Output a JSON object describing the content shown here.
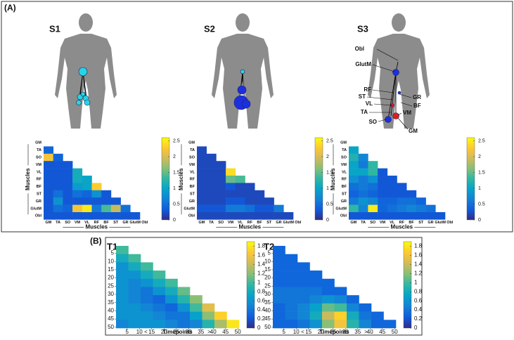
{
  "colormap": [
    "#352a87",
    "#0f5cdd",
    "#1481d6",
    "#06a4ca",
    "#2eb7a4",
    "#87bf77",
    "#d1bb59",
    "#fec832",
    "#f9fb0e"
  ],
  "panel_a": {
    "label": "(A)",
    "axis_label": "Muscles",
    "muscles": [
      "GM",
      "TA",
      "SO",
      "VM",
      "VL",
      "RF",
      "BF",
      "ST",
      "GR",
      "GlutM",
      "Obl"
    ],
    "clim": [
      0,
      2.6
    ],
    "cticks": [
      0,
      0.5,
      1,
      1.5,
      2,
      2.5
    ],
    "body_labels": [
      "Obl",
      "GlutM",
      "RF",
      "ST",
      "VL",
      "TA",
      "SO",
      "GR",
      "BF",
      "VM",
      "GM"
    ],
    "subjects": [
      {
        "title": "S1",
        "rows": [
          [
            0.4
          ],
          [
            2.2,
            0.4
          ],
          [
            0.3,
            0.3,
            0.3
          ],
          [
            0.3,
            0.3,
            0.3,
            1.1
          ],
          [
            0.3,
            0.3,
            0.3,
            1.1,
            1.0
          ],
          [
            0.3,
            0.3,
            0.3,
            0.9,
            1.0,
            2.3
          ],
          [
            0.3,
            0.5,
            0.3,
            0.5,
            0.4,
            0.8,
            0.3
          ],
          [
            0.3,
            0.8,
            0.3,
            0.3,
            0.3,
            0.3,
            0.3,
            0.3
          ],
          [
            0.3,
            0.5,
            0.4,
            2.2,
            2.5,
            0.6,
            1.4,
            1.9,
            0.5
          ],
          [
            0.3,
            0.3,
            0.3,
            0.3,
            0.3,
            0.3,
            0.3,
            0.3,
            0.3,
            0.3
          ]
        ]
      },
      {
        "title": "S2",
        "rows": [
          [
            0.2
          ],
          [
            0.2,
            0.2
          ],
          [
            0.2,
            0.2,
            0.2
          ],
          [
            0.2,
            0.2,
            0.2,
            2.4
          ],
          [
            0.2,
            0.2,
            0.2,
            1.5,
            1.4
          ],
          [
            0.2,
            0.2,
            0.2,
            0.3,
            0.2,
            0.2
          ],
          [
            0.2,
            0.2,
            0.2,
            0.2,
            0.2,
            0.2,
            0.2
          ],
          [
            0.2,
            0.2,
            0.2,
            0.3,
            0.3,
            0.2,
            0.2,
            0.2
          ],
          [
            0.3,
            0.3,
            0.3,
            0.6,
            0.6,
            0.5,
            0.3,
            0.3,
            0.6
          ],
          [
            0.2,
            0.2,
            0.2,
            0.2,
            0.2,
            0.2,
            0.2,
            0.2,
            0.2,
            0.2
          ]
        ]
      },
      {
        "title": "S3",
        "rows": [
          [
            1.0
          ],
          [
            1.2,
            0.7
          ],
          [
            1.0,
            0.6,
            1.3
          ],
          [
            1.0,
            1.0,
            1.3,
            0.3
          ],
          [
            0.8,
            0.6,
            0.8,
            0.3,
            0.3
          ],
          [
            0.5,
            0.6,
            0.5,
            0.3,
            0.3,
            0.3
          ],
          [
            0.4,
            0.5,
            0.4,
            0.3,
            0.3,
            0.3,
            0.3
          ],
          [
            0.6,
            0.8,
            0.7,
            0.4,
            0.4,
            0.5,
            0.5,
            0.4
          ],
          [
            1.3,
            0.7,
            2.5,
            0.4,
            0.5,
            0.6,
            0.7,
            0.6,
            0.5
          ],
          [
            0.3,
            0.3,
            0.3,
            0.3,
            0.3,
            0.3,
            0.3,
            0.3,
            0.3,
            0.3
          ]
        ]
      }
    ]
  },
  "panel_b": {
    "label": "(B)",
    "axis_label": "Timepoints",
    "span": 50,
    "block": 5,
    "ticks": [
      5,
      10,
      15,
      20,
      25,
      30,
      35,
      40,
      45,
      50
    ],
    "clim": [
      0,
      1.9
    ],
    "cticks": [
      0,
      0.2,
      0.4,
      0.6,
      0.8,
      1,
      1.2,
      1.4,
      1.6,
      1.8
    ],
    "subjects": [
      {
        "title": "T1",
        "rows": [
          [
            1.0
          ],
          [
            0.8,
            1.0
          ],
          [
            0.6,
            0.8,
            1.0
          ],
          [
            0.6,
            0.6,
            0.8,
            1.0
          ],
          [
            0.6,
            0.5,
            0.6,
            0.8,
            1.0
          ],
          [
            0.6,
            0.5,
            0.4,
            0.6,
            0.8,
            1.1
          ],
          [
            0.6,
            0.5,
            0.4,
            0.3,
            0.6,
            0.9,
            1.2
          ],
          [
            0.6,
            0.6,
            0.5,
            0.4,
            0.3,
            0.6,
            1.0,
            1.5
          ],
          [
            0.6,
            0.6,
            0.6,
            0.5,
            0.4,
            0.4,
            0.7,
            1.2,
            1.7
          ],
          [
            0.5,
            0.6,
            0.6,
            0.6,
            0.5,
            0.4,
            0.5,
            0.9,
            1.3,
            1.8
          ]
        ]
      },
      {
        "title": "T2",
        "rows": [
          [
            0.3
          ],
          [
            0.3,
            0.3
          ],
          [
            0.3,
            0.3,
            0.3
          ],
          [
            0.3,
            0.3,
            0.3,
            0.3
          ],
          [
            0.3,
            0.3,
            0.3,
            0.3,
            0.3
          ],
          [
            0.4,
            0.4,
            0.4,
            0.4,
            0.3,
            0.3
          ],
          [
            0.4,
            0.4,
            0.4,
            0.5,
            0.6,
            0.5,
            0.3
          ],
          [
            0.3,
            0.4,
            0.5,
            0.7,
            1.1,
            1.0,
            0.5,
            0.3
          ],
          [
            0.3,
            0.4,
            0.5,
            0.8,
            1.4,
            1.7,
            0.8,
            0.4,
            0.3
          ],
          [
            0.3,
            0.3,
            0.4,
            0.6,
            1.2,
            1.6,
            0.9,
            0.5,
            0.3,
            0.3
          ]
        ]
      }
    ]
  }
}
